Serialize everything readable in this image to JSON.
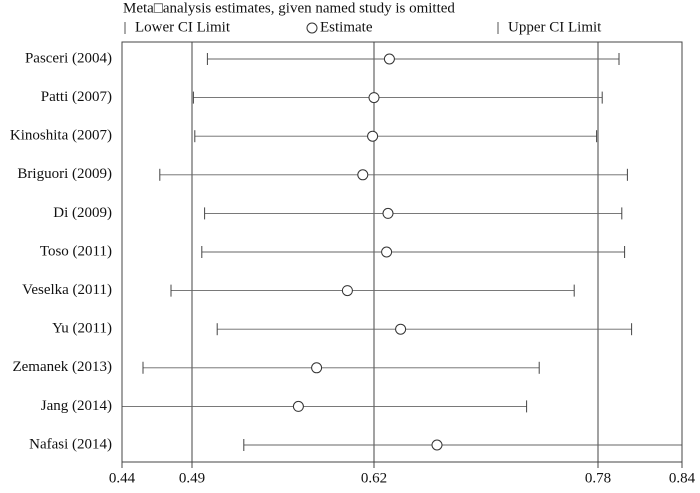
{
  "chart_data": {
    "type": "forest",
    "title": "Meta□analysis estimates, given named study is omitted",
    "categories": [
      "Pasceri (2004)",
      "Patti (2007)",
      "Kinoshita (2007)",
      "Briguori (2009)",
      "Di (2009)",
      "Toso (2011)",
      "Veselka (2011)",
      "Yu (2011)",
      "Zemanek (2013)",
      "Jang (2014)",
      "Nafasi (2014)"
    ],
    "series": [
      {
        "name": "Lower CI Limit",
        "marker": "bar",
        "values": [
          0.501,
          0.491,
          0.492,
          0.467,
          0.499,
          0.497,
          0.475,
          0.508,
          0.455,
          0.44,
          0.527
        ]
      },
      {
        "name": "Estimate",
        "marker": "circle",
        "values": [
          0.631,
          0.62,
          0.619,
          0.612,
          0.63,
          0.629,
          0.601,
          0.639,
          0.579,
          0.566,
          0.665
        ]
      },
      {
        "name": "Upper CI Limit",
        "marker": "bar",
        "values": [
          0.795,
          0.783,
          0.779,
          0.801,
          0.797,
          0.799,
          0.763,
          0.804,
          0.738,
          0.729,
          0.84
        ]
      }
    ],
    "reference_lines": [
      0.49,
      0.62,
      0.78
    ],
    "xlim": [
      0.44,
      0.84
    ],
    "xticks": [
      0.44,
      0.49,
      0.62,
      0.78,
      0.84
    ]
  }
}
